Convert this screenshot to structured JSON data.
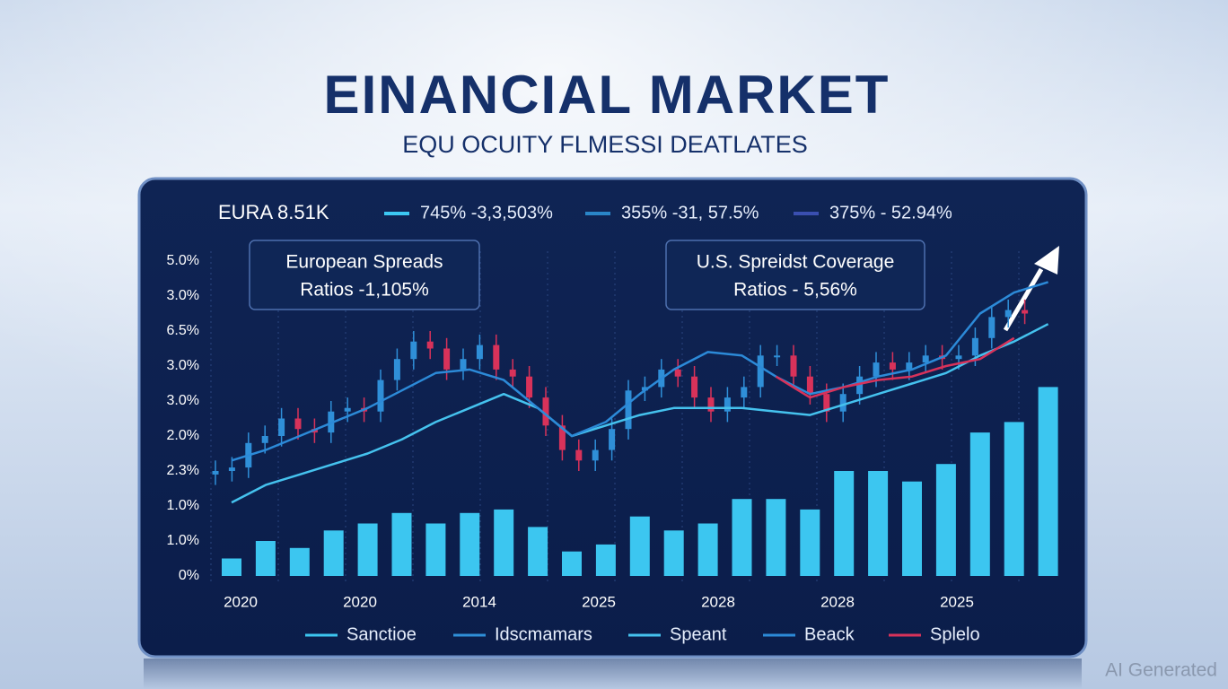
{
  "chart_data": {
    "type": "bar",
    "title": "EINANCIAL MARKET",
    "subtitle": "EQU OCUITY FLMESSI DEATLATES",
    "header": {
      "label": "EURA 8.51K",
      "items": [
        {
          "text": "745% -3,3,503%",
          "color": "#3cc8f2"
        },
        {
          "text": "355% -31, 57.5%",
          "color": "#2a86c8"
        },
        {
          "text": "375% - 52.94%",
          "color": "#3a4fb0"
        }
      ]
    },
    "boxes": [
      {
        "line1": "European Spreads",
        "line2": "Ratios -1,105%"
      },
      {
        "line1": "U.S. Spreidst Coverage",
        "line2": "Ratios - 5,56%"
      }
    ],
    "y_labels": [
      "5.0%",
      "3.0%",
      "6.5%",
      "3.0%",
      "3.0%",
      "2.0%",
      "2.3%",
      "1.0%",
      "1.0%",
      "0%"
    ],
    "x_labels": [
      "2020",
      "2020",
      "2014",
      "2025",
      "2028",
      "2028",
      "2025"
    ],
    "ylim": [
      0,
      9
    ],
    "series": [
      {
        "name": "Sanctioe",
        "color": "#3cc6f0",
        "kind": "bar",
        "values": [
          0.5,
          1.0,
          0.8,
          1.3,
          1.5,
          1.8,
          1.5,
          1.8,
          1.9,
          1.4,
          0.7,
          0.9,
          1.7,
          1.3,
          1.5,
          2.2,
          2.2,
          1.9,
          3.0,
          3.0,
          2.7,
          3.2,
          4.1,
          4.4,
          5.4
        ]
      },
      {
        "name": "Idscmamars",
        "color": "#2f8fd8",
        "kind": "candle",
        "down_color": "#d8325a",
        "open": [
          2.9,
          3.0,
          3.1,
          3.8,
          4.0,
          4.5,
          4.2,
          4.1,
          4.7,
          4.8,
          4.7,
          5.6,
          6.2,
          6.7,
          6.5,
          5.9,
          6.2,
          6.6,
          5.9,
          5.7,
          5.1,
          4.3,
          3.6,
          3.3,
          3.6,
          4.2,
          5.3,
          5.4,
          5.9,
          5.7,
          5.1,
          4.7,
          5.1,
          5.4,
          6.3,
          6.3,
          5.7,
          5.2,
          4.7,
          5.2,
          5.7,
          6.1,
          5.9,
          6.1,
          6.3,
          6.2,
          6.3,
          6.8,
          7.4,
          7.6
        ],
        "close": [
          3.0,
          3.1,
          3.8,
          4.0,
          4.5,
          4.2,
          4.1,
          4.7,
          4.8,
          4.7,
          5.6,
          6.2,
          6.7,
          6.5,
          5.9,
          6.2,
          6.6,
          5.9,
          5.7,
          5.1,
          4.3,
          3.6,
          3.3,
          3.6,
          4.2,
          5.3,
          5.4,
          5.9,
          5.7,
          5.1,
          4.7,
          5.1,
          5.4,
          6.3,
          6.3,
          5.7,
          5.2,
          4.7,
          5.2,
          5.7,
          6.1,
          5.9,
          6.1,
          6.3,
          6.2,
          6.3,
          6.8,
          7.4,
          7.6,
          7.5
        ],
        "high": [
          3.3,
          3.4,
          4.1,
          4.3,
          4.8,
          4.8,
          4.5,
          5.0,
          5.1,
          5.1,
          5.9,
          6.5,
          7.0,
          7.0,
          6.8,
          6.5,
          6.9,
          6.9,
          6.2,
          6.0,
          5.4,
          4.6,
          3.9,
          3.9,
          4.5,
          5.6,
          5.7,
          6.2,
          6.2,
          6.0,
          5.4,
          5.4,
          5.7,
          6.6,
          6.6,
          6.6,
          6.0,
          5.5,
          5.5,
          6.0,
          6.4,
          6.4,
          6.4,
          6.6,
          6.6,
          6.6,
          7.1,
          7.7,
          7.9,
          7.9
        ],
        "low": [
          2.6,
          2.7,
          2.8,
          3.5,
          3.7,
          3.9,
          3.8,
          3.8,
          4.4,
          4.4,
          4.4,
          5.3,
          5.9,
          6.2,
          5.6,
          5.6,
          5.9,
          5.6,
          5.4,
          4.8,
          4.0,
          3.3,
          3.0,
          3.0,
          3.3,
          3.9,
          5.0,
          5.1,
          5.4,
          4.8,
          4.4,
          4.4,
          4.8,
          5.1,
          6.0,
          5.4,
          4.9,
          4.4,
          4.4,
          4.9,
          5.4,
          5.6,
          5.6,
          5.8,
          5.9,
          5.9,
          6.0,
          6.5,
          7.1,
          7.2
        ]
      },
      {
        "name": "Speant",
        "color": "#45c2ee",
        "kind": "line",
        "values": [
          2.1,
          2.6,
          2.9,
          3.2,
          3.5,
          3.9,
          4.4,
          4.8,
          5.2,
          4.8,
          4.0,
          4.3,
          4.6,
          4.8,
          4.8,
          4.8,
          4.7,
          4.6,
          4.9,
          5.2,
          5.5,
          5.8,
          6.3,
          6.7,
          7.2
        ]
      },
      {
        "name": "Beack",
        "color": "#2c8ad8",
        "kind": "line",
        "values": [
          3.3,
          3.6,
          4.0,
          4.4,
          4.8,
          5.3,
          5.8,
          5.9,
          5.6,
          4.8,
          4.0,
          4.4,
          5.2,
          5.9,
          6.4,
          6.3,
          5.7,
          5.2,
          5.4,
          5.7,
          5.9,
          6.3,
          7.5,
          8.1,
          8.4
        ]
      },
      {
        "name": "Splelo",
        "color": "#d8325a",
        "kind": "line",
        "values": [
          null,
          null,
          null,
          null,
          null,
          null,
          null,
          null,
          null,
          null,
          null,
          null,
          null,
          null,
          null,
          null,
          5.7,
          5.1,
          5.4,
          5.6,
          5.7,
          6.0,
          6.2,
          6.8,
          null
        ]
      }
    ],
    "watermark": "AI Generated"
  }
}
